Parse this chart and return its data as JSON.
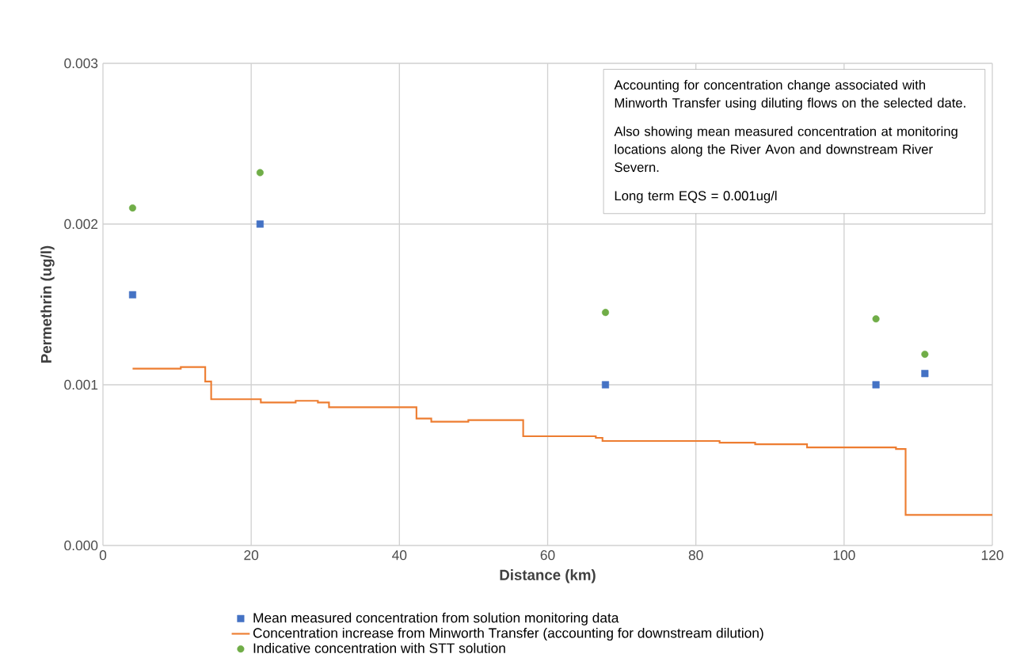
{
  "chart_data": {
    "type": "scatter",
    "xlabel": "Distance (km)",
    "ylabel": "Permethrin (ug/l)",
    "xlim": [
      0,
      120
    ],
    "xticks": [
      0,
      20,
      40,
      60,
      80,
      100,
      120
    ],
    "ylim": [
      0,
      0.003
    ],
    "yticks": [
      {
        "value": 0,
        "label": "0.000"
      },
      {
        "value": 0.001,
        "label": "0.001"
      },
      {
        "value": 0.002,
        "label": "0.002"
      },
      {
        "value": 0.003,
        "label": "0.003"
      }
    ],
    "grid": true,
    "legend": "bottom",
    "annotations": [
      "Accounting for concentration change associated with Minworth Transfer using diluting flows on the selected date.",
      "Also showing mean measured concentration at monitoring locations along the River Avon and downstream River Severn.",
      "Long term EQS = 0.001ug/l"
    ],
    "series": [
      {
        "name": "Mean measured concentration from solution monitoring data",
        "marker": "square",
        "color": "#4472c4",
        "x": [
          4,
          21.2,
          67.8,
          104.3,
          110.9
        ],
        "values": [
          0.00156,
          0.002,
          0.001,
          0.001,
          0.00107
        ]
      },
      {
        "name": "Concentration increase from Minworth Transfer (accounting for downstream dilution)",
        "type": "step",
        "marker": "none",
        "color": "#ed7d31",
        "x": [
          4,
          5,
          10.5,
          13.8,
          14.6,
          21.3,
          26,
          29,
          30.5,
          42.3,
          44.3,
          49.3,
          56.7,
          66.5,
          67.4,
          83.2,
          88,
          95,
          101.5,
          107,
          108.3,
          120
        ],
        "values": [
          0.0011,
          0.0011,
          0.00111,
          0.00102,
          0.00091,
          0.00089,
          0.0009,
          0.00089,
          0.00086,
          0.00079,
          0.00077,
          0.00078,
          0.00068,
          0.00067,
          0.00065,
          0.00064,
          0.00063,
          0.00061,
          0.00061,
          0.0006,
          0.00019,
          0.00019
        ]
      },
      {
        "name": "Indicative concentration with STT solution",
        "marker": "circle",
        "color": "#70ad47",
        "x": [
          4,
          21.2,
          67.8,
          104.3,
          110.9
        ],
        "values": [
          0.0021,
          0.00232,
          0.00145,
          0.00141,
          0.00119
        ]
      }
    ]
  }
}
